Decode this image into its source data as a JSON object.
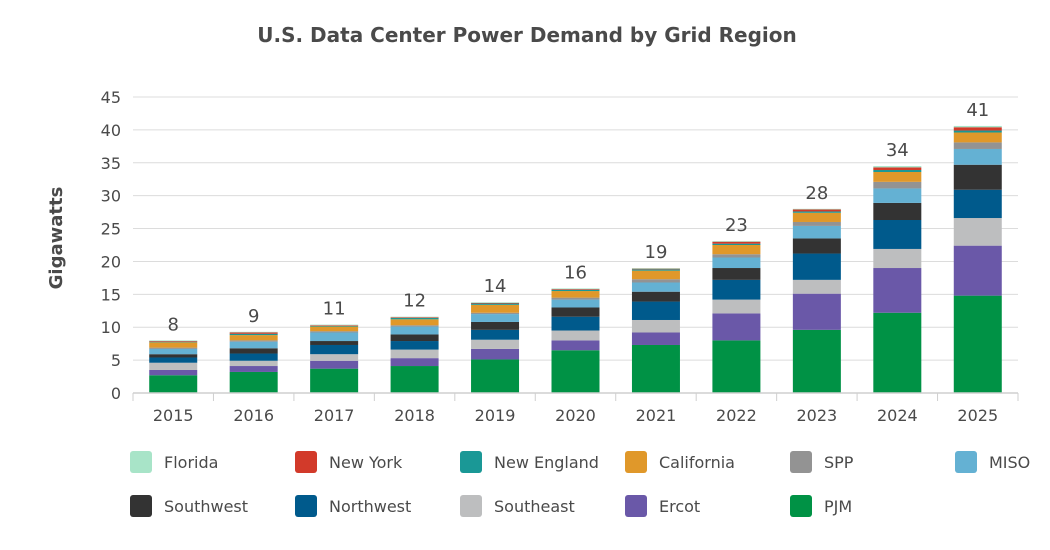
{
  "chart_data": {
    "type": "bar",
    "stacked": true,
    "title": "U.S. Data Center Power Demand by Grid Region",
    "xlabel": "",
    "ylabel": "Gigawatts",
    "ylim": [
      0,
      45
    ],
    "yticks": [
      0,
      5,
      10,
      15,
      20,
      25,
      30,
      35,
      40,
      45
    ],
    "grid": true,
    "legend_position": "bottom",
    "categories": [
      "2015",
      "2016",
      "2017",
      "2018",
      "2019",
      "2020",
      "2021",
      "2022",
      "2023",
      "2024",
      "2025"
    ],
    "totals": [
      "8",
      "9",
      "11",
      "12",
      "14",
      "16",
      "19",
      "23",
      "28",
      "34",
      "41"
    ],
    "series": [
      {
        "name": "Florida",
        "color": "#a8e4c8",
        "values": [
          0.1,
          0.1,
          0.1,
          0.1,
          0.1,
          0.1,
          0.1,
          0.1,
          0.1,
          0.2,
          0.2
        ]
      },
      {
        "name": "New York",
        "color": "#d23a2a",
        "values": [
          0.1,
          0.2,
          0.1,
          0.1,
          0.1,
          0.1,
          0.1,
          0.3,
          0.3,
          0.4,
          0.5
        ]
      },
      {
        "name": "New England",
        "color": "#1a9896",
        "values": [
          0.1,
          0.2,
          0.1,
          0.2,
          0.2,
          0.2,
          0.2,
          0.2,
          0.2,
          0.3,
          0.3
        ]
      },
      {
        "name": "California",
        "color": "#e0982a",
        "values": [
          0.8,
          0.8,
          0.7,
          0.9,
          1.2,
          1.0,
          1.3,
          1.4,
          1.4,
          1.5,
          1.5
        ]
      },
      {
        "name": "SPP",
        "color": "#939393",
        "values": [
          0.2,
          0.2,
          0.2,
          0.2,
          0.2,
          0.3,
          0.5,
          0.5,
          0.6,
          1.0,
          1.0
        ]
      },
      {
        "name": "MISO",
        "color": "#64b1d3",
        "values": [
          0.8,
          1.0,
          1.3,
          1.2,
          1.2,
          1.2,
          1.4,
          1.6,
          1.9,
          2.2,
          2.4
        ]
      },
      {
        "name": "Southwest",
        "color": "#333333",
        "values": [
          0.5,
          0.8,
          0.6,
          1.0,
          1.2,
          1.4,
          1.5,
          1.8,
          2.3,
          2.6,
          3.8
        ]
      },
      {
        "name": "Northwest",
        "color": "#005a8c",
        "values": [
          0.8,
          1.1,
          1.4,
          1.3,
          1.5,
          2.1,
          2.8,
          3.0,
          4.0,
          4.4,
          4.3
        ]
      },
      {
        "name": "Southeast",
        "color": "#bdbebf",
        "values": [
          1.1,
          0.8,
          1.0,
          1.3,
          1.4,
          1.5,
          1.9,
          2.1,
          2.1,
          2.9,
          4.2
        ]
      },
      {
        "name": "Ercot",
        "color": "#6a58a8",
        "values": [
          0.8,
          0.9,
          1.2,
          1.2,
          1.6,
          1.5,
          1.9,
          4.1,
          5.5,
          6.8,
          7.6
        ]
      },
      {
        "name": "PJM",
        "color": "#009245",
        "values": [
          2.7,
          3.2,
          3.7,
          4.1,
          5.1,
          6.5,
          7.3,
          8.0,
          9.6,
          12.2,
          14.8
        ]
      }
    ]
  }
}
